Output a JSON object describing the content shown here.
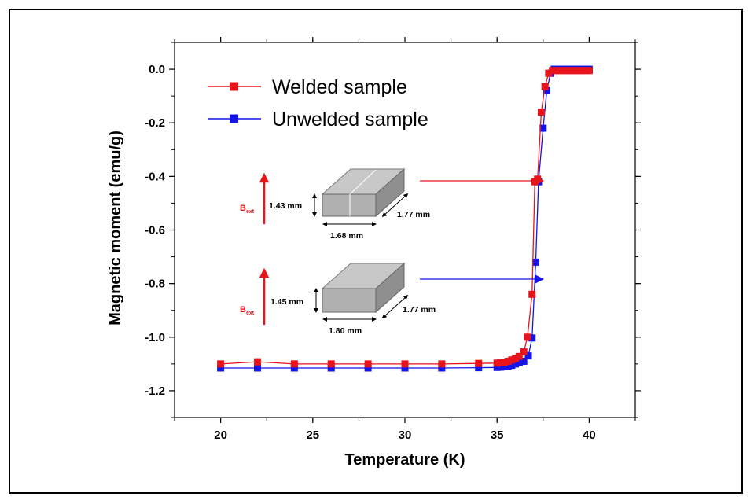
{
  "chart_data": {
    "type": "line",
    "xlabel": "Temperature (K)",
    "ylabel": "Magnetic moment (emu/g)",
    "xlim": [
      17.5,
      42.5
    ],
    "ylim": [
      -1.3,
      0.1
    ],
    "x_ticks": [
      "20",
      "25",
      "30",
      "35",
      "40"
    ],
    "y_ticks": [
      "0.0",
      "-0.2",
      "-0.4",
      "-0.6",
      "-0.8",
      "-1.0",
      "-1.2"
    ],
    "legend_position": "top-left",
    "series": [
      {
        "name": "Welded sample",
        "color": "#e8141b",
        "marker": "square",
        "x": [
          20,
          22,
          24,
          26,
          28,
          30,
          32,
          34,
          35.0,
          35.2,
          35.4,
          35.6,
          35.8,
          36.0,
          36.2,
          36.45,
          36.65,
          36.9,
          37.05,
          37.2,
          37.4,
          37.6,
          37.8,
          38.0,
          38.2,
          38.4,
          38.6,
          38.8,
          39.0,
          39.2,
          39.4,
          39.6,
          39.8,
          40.0
        ],
        "y": [
          -1.1,
          -1.092,
          -1.1,
          -1.1,
          -1.1,
          -1.1,
          -1.1,
          -1.098,
          -1.097,
          -1.095,
          -1.093,
          -1.09,
          -1.085,
          -1.08,
          -1.072,
          -1.055,
          -1.0,
          -0.84,
          -0.42,
          -0.41,
          -0.16,
          -0.065,
          -0.015,
          -0.005,
          -0.005,
          -0.005,
          -0.005,
          -0.005,
          -0.005,
          -0.005,
          -0.005,
          -0.005,
          -0.005,
          -0.005
        ]
      },
      {
        "name": "Unwelded sample",
        "color": "#1414e8",
        "marker": "square",
        "x": [
          20,
          22,
          24,
          26,
          28,
          30,
          32,
          34,
          35.0,
          35.2,
          35.4,
          35.6,
          35.8,
          36.0,
          36.2,
          36.45,
          36.7,
          36.9,
          37.1,
          37.25,
          37.5,
          37.7,
          37.9,
          38.1,
          38.3,
          38.5,
          38.7,
          38.9,
          39.1,
          39.3,
          39.5,
          39.7,
          39.9,
          40.0
        ],
        "y": [
          -1.115,
          -1.115,
          -1.115,
          -1.115,
          -1.115,
          -1.115,
          -1.115,
          -1.114,
          -1.113,
          -1.112,
          -1.11,
          -1.108,
          -1.105,
          -1.1,
          -1.095,
          -1.09,
          -1.07,
          -1.003,
          -0.72,
          -0.42,
          -0.22,
          -0.08,
          -0.015,
          0.0,
          0.0,
          0.0,
          0.0,
          0.0,
          0.0,
          0.0,
          0.0,
          0.0,
          0.0,
          0.0
        ]
      }
    ],
    "annotations": {
      "top_sample": {
        "field_label": "B",
        "field_subscript": "ext",
        "height": "1.43 mm",
        "width": "1.68 mm",
        "depth": "1.77 mm"
      },
      "bottom_sample": {
        "field_label": "B",
        "field_subscript": "ext",
        "height": "1.45 mm",
        "width": "1.80 mm",
        "depth": "1.77 mm"
      }
    }
  }
}
